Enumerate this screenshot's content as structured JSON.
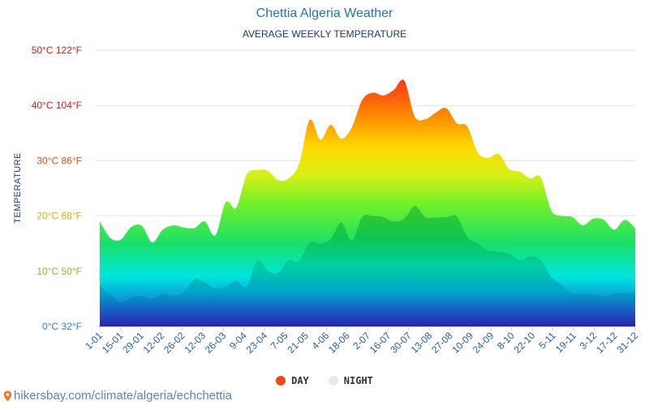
{
  "chart_data": {
    "type": "area",
    "title": "Chettia Algeria Weather",
    "subtitle": "AVERAGE WEEKLY TEMPERATURE",
    "ylabel": "TEMPERATURE",
    "ylim": [
      0,
      50
    ],
    "grid": true,
    "legend_placement": "bottom",
    "y_ticks": [
      {
        "value": 0,
        "label": "0°C 32°F",
        "color": "#2a7bd8"
      },
      {
        "value": 10,
        "label": "10°C 50°F",
        "color": "#88c020"
      },
      {
        "value": 20,
        "label": "20°C 68°F",
        "color": "#d8b400"
      },
      {
        "value": 30,
        "label": "30°C 86°F",
        "color": "#e24a10"
      },
      {
        "value": 40,
        "label": "40°C 104°F",
        "color": "#d81818"
      },
      {
        "value": 50,
        "label": "50°C 122°F",
        "color": "#d81818"
      }
    ],
    "x_labels": [
      "1-01",
      "15-01",
      "29-01",
      "12-02",
      "26-02",
      "12-03",
      "26-03",
      "9-04",
      "23-04",
      "7-05",
      "21-05",
      "4-06",
      "18-06",
      "2-07",
      "16-07",
      "30-07",
      "13-08",
      "27-08",
      "10-09",
      "24-09",
      "8-10",
      "22-10",
      "5-11",
      "19-11",
      "3-12",
      "17-12",
      "31-12"
    ],
    "series": [
      {
        "name": "DAY",
        "color": "#ee4a14",
        "values": [
          19,
          16,
          15.7,
          18,
          18.2,
          15.2,
          17.5,
          18.3,
          17.9,
          17.8,
          19,
          16.5,
          22.5,
          21.5,
          27.5,
          28.3,
          28.2,
          26.5,
          26.8,
          29.5,
          37.4,
          33.8,
          36.5,
          34,
          36,
          41,
          42.3,
          41.8,
          42.8,
          44.5,
          38,
          37.5,
          38.7,
          39.5,
          36.8,
          36.2,
          31.5,
          30.5,
          31.2,
          28.5,
          28,
          26.8,
          27,
          21,
          20,
          19.8,
          18.3,
          19.5,
          19.3,
          17.5,
          19.3,
          17.8
        ]
      },
      {
        "name": "NIGHT",
        "color": "#e4ebf3",
        "values": [
          7.3,
          5.8,
          4.3,
          5.3,
          5.5,
          5,
          6,
          5.5,
          6.3,
          8.5,
          8,
          6.8,
          7.2,
          8.3,
          7.2,
          12,
          10,
          9.8,
          12,
          11.8,
          15.2,
          15,
          15.8,
          18.8,
          15.5,
          19.8,
          20,
          19.8,
          19,
          19.5,
          21.8,
          19.8,
          19.7,
          19.8,
          19.9,
          16.2,
          15,
          13.8,
          13.5,
          13.2,
          12,
          12.7,
          12,
          9,
          7.5,
          6,
          6,
          5.8,
          5.5,
          6,
          6,
          6.2
        ]
      }
    ]
  },
  "footer": {
    "text": "hikersbay.com/climate/algeria/echchettia"
  }
}
